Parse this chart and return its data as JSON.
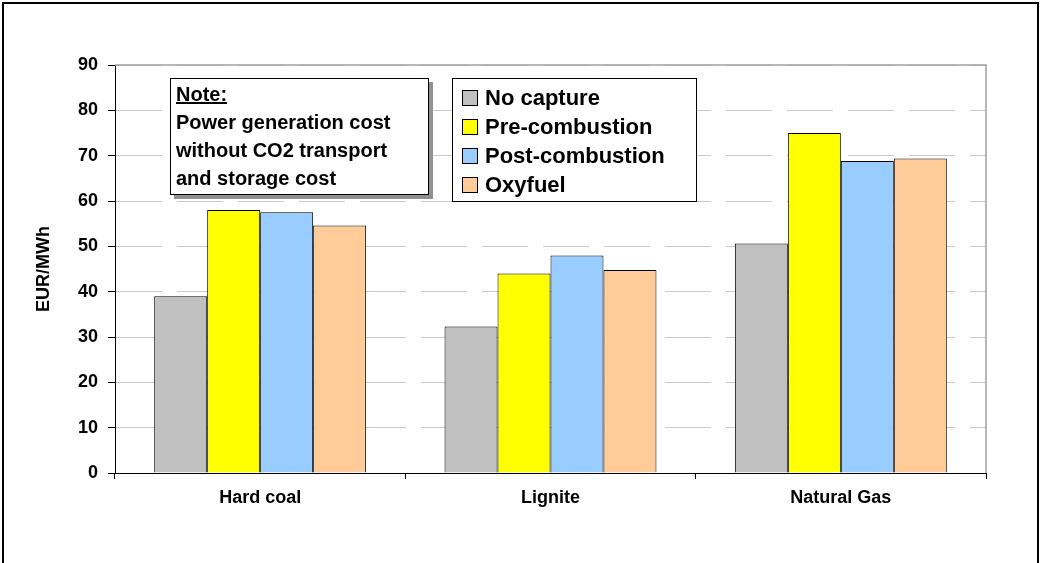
{
  "chart_data": {
    "type": "bar",
    "ylabel": "EUR/MWh",
    "categories": [
      "Hard coal",
      "Lignite",
      "Natural Gas"
    ],
    "series": [
      {
        "name": "No capture",
        "color": "#c0c0c0",
        "values": [
          39,
          32.3,
          50.6
        ]
      },
      {
        "name": "Pre-combustion",
        "color": "#ffff00",
        "values": [
          58,
          44,
          75
        ]
      },
      {
        "name": "Post-combustion",
        "color": "#99ccff",
        "values": [
          57.5,
          48,
          68.8
        ]
      },
      {
        "name": "Oxyfuel",
        "color": "#ffcc99",
        "values": [
          54.6,
          44.8,
          69.4
        ]
      }
    ],
    "ylim": [
      0,
      90
    ],
    "yticks": [
      0,
      10,
      20,
      30,
      40,
      50,
      60,
      70,
      80,
      90
    ],
    "grid": "y",
    "legend": "top",
    "annotations": [
      "Note:",
      "Power generation cost without CO2 transport and storage cost"
    ]
  }
}
